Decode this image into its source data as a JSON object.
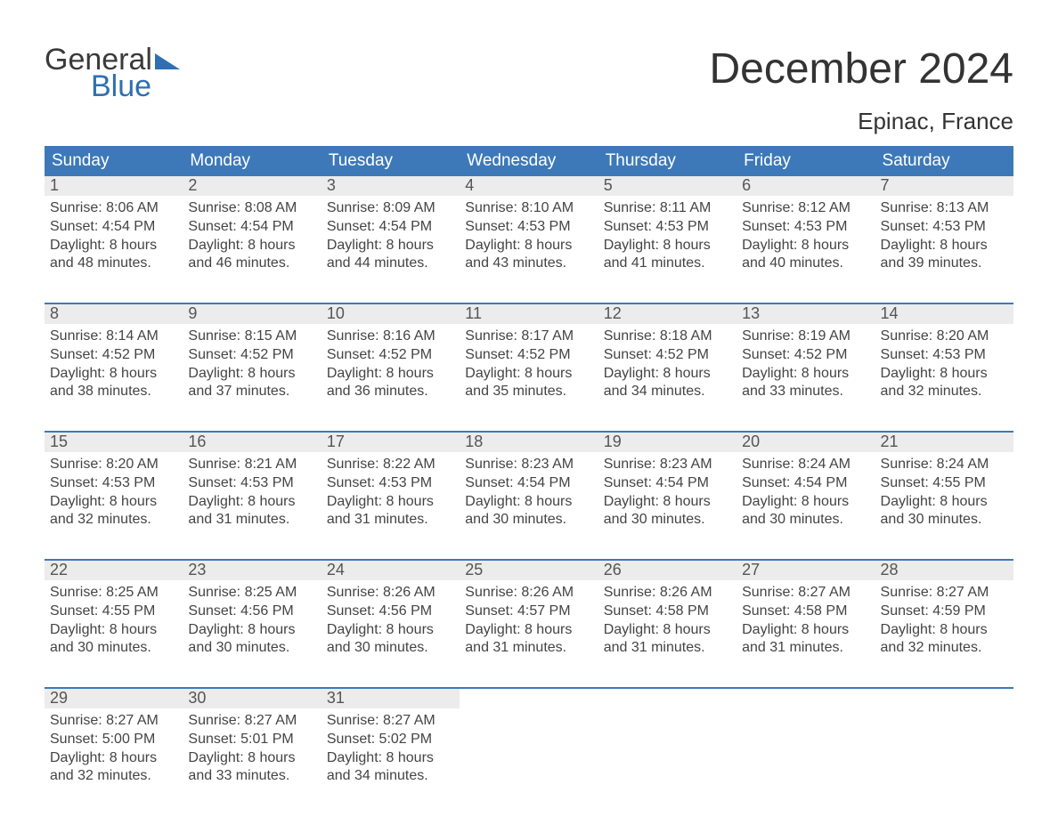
{
  "logo": {
    "line1": "General",
    "line2": "Blue"
  },
  "title": "December 2024",
  "location": "Epinac, France",
  "colors": {
    "header_bg": "#3d79b8",
    "header_text": "#ffffff",
    "week_border": "#3d79b8",
    "daynum_bg": "#ececec",
    "daynum_text": "#555555",
    "body_text": "#444444",
    "page_bg": "#ffffff",
    "logo_accent": "#2f6fb2"
  },
  "typography": {
    "title_fontsize": 48,
    "location_fontsize": 26,
    "header_fontsize": 19,
    "daynum_fontsize": 18,
    "body_fontsize": 16,
    "logo_fontsize": 34
  },
  "day_headers": [
    "Sunday",
    "Monday",
    "Tuesday",
    "Wednesday",
    "Thursday",
    "Friday",
    "Saturday"
  ],
  "weeks": [
    [
      {
        "n": "1",
        "sunrise": "Sunrise: 8:06 AM",
        "sunset": "Sunset: 4:54 PM",
        "d1": "Daylight: 8 hours",
        "d2": "and 48 minutes."
      },
      {
        "n": "2",
        "sunrise": "Sunrise: 8:08 AM",
        "sunset": "Sunset: 4:54 PM",
        "d1": "Daylight: 8 hours",
        "d2": "and 46 minutes."
      },
      {
        "n": "3",
        "sunrise": "Sunrise: 8:09 AM",
        "sunset": "Sunset: 4:54 PM",
        "d1": "Daylight: 8 hours",
        "d2": "and 44 minutes."
      },
      {
        "n": "4",
        "sunrise": "Sunrise: 8:10 AM",
        "sunset": "Sunset: 4:53 PM",
        "d1": "Daylight: 8 hours",
        "d2": "and 43 minutes."
      },
      {
        "n": "5",
        "sunrise": "Sunrise: 8:11 AM",
        "sunset": "Sunset: 4:53 PM",
        "d1": "Daylight: 8 hours",
        "d2": "and 41 minutes."
      },
      {
        "n": "6",
        "sunrise": "Sunrise: 8:12 AM",
        "sunset": "Sunset: 4:53 PM",
        "d1": "Daylight: 8 hours",
        "d2": "and 40 minutes."
      },
      {
        "n": "7",
        "sunrise": "Sunrise: 8:13 AM",
        "sunset": "Sunset: 4:53 PM",
        "d1": "Daylight: 8 hours",
        "d2": "and 39 minutes."
      }
    ],
    [
      {
        "n": "8",
        "sunrise": "Sunrise: 8:14 AM",
        "sunset": "Sunset: 4:52 PM",
        "d1": "Daylight: 8 hours",
        "d2": "and 38 minutes."
      },
      {
        "n": "9",
        "sunrise": "Sunrise: 8:15 AM",
        "sunset": "Sunset: 4:52 PM",
        "d1": "Daylight: 8 hours",
        "d2": "and 37 minutes."
      },
      {
        "n": "10",
        "sunrise": "Sunrise: 8:16 AM",
        "sunset": "Sunset: 4:52 PM",
        "d1": "Daylight: 8 hours",
        "d2": "and 36 minutes."
      },
      {
        "n": "11",
        "sunrise": "Sunrise: 8:17 AM",
        "sunset": "Sunset: 4:52 PM",
        "d1": "Daylight: 8 hours",
        "d2": "and 35 minutes."
      },
      {
        "n": "12",
        "sunrise": "Sunrise: 8:18 AM",
        "sunset": "Sunset: 4:52 PM",
        "d1": "Daylight: 8 hours",
        "d2": "and 34 minutes."
      },
      {
        "n": "13",
        "sunrise": "Sunrise: 8:19 AM",
        "sunset": "Sunset: 4:52 PM",
        "d1": "Daylight: 8 hours",
        "d2": "and 33 minutes."
      },
      {
        "n": "14",
        "sunrise": "Sunrise: 8:20 AM",
        "sunset": "Sunset: 4:53 PM",
        "d1": "Daylight: 8 hours",
        "d2": "and 32 minutes."
      }
    ],
    [
      {
        "n": "15",
        "sunrise": "Sunrise: 8:20 AM",
        "sunset": "Sunset: 4:53 PM",
        "d1": "Daylight: 8 hours",
        "d2": "and 32 minutes."
      },
      {
        "n": "16",
        "sunrise": "Sunrise: 8:21 AM",
        "sunset": "Sunset: 4:53 PM",
        "d1": "Daylight: 8 hours",
        "d2": "and 31 minutes."
      },
      {
        "n": "17",
        "sunrise": "Sunrise: 8:22 AM",
        "sunset": "Sunset: 4:53 PM",
        "d1": "Daylight: 8 hours",
        "d2": "and 31 minutes."
      },
      {
        "n": "18",
        "sunrise": "Sunrise: 8:23 AM",
        "sunset": "Sunset: 4:54 PM",
        "d1": "Daylight: 8 hours",
        "d2": "and 30 minutes."
      },
      {
        "n": "19",
        "sunrise": "Sunrise: 8:23 AM",
        "sunset": "Sunset: 4:54 PM",
        "d1": "Daylight: 8 hours",
        "d2": "and 30 minutes."
      },
      {
        "n": "20",
        "sunrise": "Sunrise: 8:24 AM",
        "sunset": "Sunset: 4:54 PM",
        "d1": "Daylight: 8 hours",
        "d2": "and 30 minutes."
      },
      {
        "n": "21",
        "sunrise": "Sunrise: 8:24 AM",
        "sunset": "Sunset: 4:55 PM",
        "d1": "Daylight: 8 hours",
        "d2": "and 30 minutes."
      }
    ],
    [
      {
        "n": "22",
        "sunrise": "Sunrise: 8:25 AM",
        "sunset": "Sunset: 4:55 PM",
        "d1": "Daylight: 8 hours",
        "d2": "and 30 minutes."
      },
      {
        "n": "23",
        "sunrise": "Sunrise: 8:25 AM",
        "sunset": "Sunset: 4:56 PM",
        "d1": "Daylight: 8 hours",
        "d2": "and 30 minutes."
      },
      {
        "n": "24",
        "sunrise": "Sunrise: 8:26 AM",
        "sunset": "Sunset: 4:56 PM",
        "d1": "Daylight: 8 hours",
        "d2": "and 30 minutes."
      },
      {
        "n": "25",
        "sunrise": "Sunrise: 8:26 AM",
        "sunset": "Sunset: 4:57 PM",
        "d1": "Daylight: 8 hours",
        "d2": "and 31 minutes."
      },
      {
        "n": "26",
        "sunrise": "Sunrise: 8:26 AM",
        "sunset": "Sunset: 4:58 PM",
        "d1": "Daylight: 8 hours",
        "d2": "and 31 minutes."
      },
      {
        "n": "27",
        "sunrise": "Sunrise: 8:27 AM",
        "sunset": "Sunset: 4:58 PM",
        "d1": "Daylight: 8 hours",
        "d2": "and 31 minutes."
      },
      {
        "n": "28",
        "sunrise": "Sunrise: 8:27 AM",
        "sunset": "Sunset: 4:59 PM",
        "d1": "Daylight: 8 hours",
        "d2": "and 32 minutes."
      }
    ],
    [
      {
        "n": "29",
        "sunrise": "Sunrise: 8:27 AM",
        "sunset": "Sunset: 5:00 PM",
        "d1": "Daylight: 8 hours",
        "d2": "and 32 minutes."
      },
      {
        "n": "30",
        "sunrise": "Sunrise: 8:27 AM",
        "sunset": "Sunset: 5:01 PM",
        "d1": "Daylight: 8 hours",
        "d2": "and 33 minutes."
      },
      {
        "n": "31",
        "sunrise": "Sunrise: 8:27 AM",
        "sunset": "Sunset: 5:02 PM",
        "d1": "Daylight: 8 hours",
        "d2": "and 34 minutes."
      },
      null,
      null,
      null,
      null
    ]
  ]
}
